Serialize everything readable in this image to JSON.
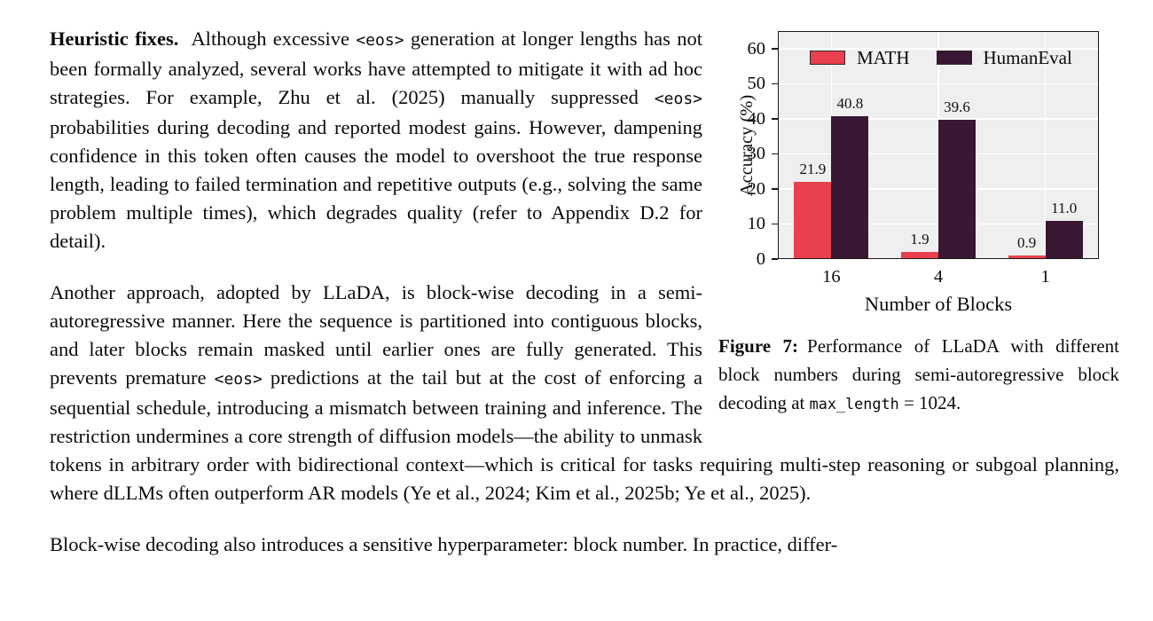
{
  "page": {
    "background": "#ffffff",
    "text_color": "#0b0b0b"
  },
  "article": {
    "paragraph1": {
      "lead": "Heuristic fixes.",
      "seg1": "Although excessive ",
      "eos1": "<eos>",
      "seg2": " generation at longer lengths has not been formally analyzed, several works have attempted to mitigate it with ad hoc strategies. For example, Zhu et al. (2025) manually suppressed ",
      "eos2": "<eos>",
      "seg3": " probabilities during decoding and reported modest gains. However, dampening confidence in this token often causes the model to overshoot the true response length, leading to failed termination and repetitive outputs (e.g., solving the same problem multiple times), which degrades quality (refer to Appendix D.2 for detail)."
    },
    "paragraph2": {
      "seg1": "Another approach, adopted by LLaDA, is block-wise decoding in a semi-autoregressive manner. Here the sequence is partitioned into contiguous blocks, and later blocks remain masked until earlier ones are fully generated. This prevents premature ",
      "eos1": "<eos>",
      "seg2": " predictions at the tail but at the cost of enforcing a sequential schedule, introducing a mismatch between training and inference. The restriction undermines a core strength of diffusion models—the ability to unmask tokens in arbitrary order with bidirectional context—which is critical for tasks requiring multi-step reasoning or subgoal planning, where dLLMs often outperform AR models (Ye et al., 2024; Kim et al., 2025b; Ye et al., 2025)."
    },
    "paragraph3": "Block-wise decoding also introduces a sensitive hyperparameter: block number. In practice, differ-"
  },
  "figure": {
    "caption": {
      "label": "Figure 7:",
      "seg1": "Performance of LLaDA with different block numbers during semi-autoregressive block decoding at ",
      "code": "max_length",
      "seg2": " = 1024."
    }
  },
  "chart_data": {
    "type": "bar",
    "categories": [
      "16",
      "4",
      "1"
    ],
    "series": [
      {
        "name": "MATH",
        "color": "#e8404e",
        "values": [
          21.9,
          1.9,
          0.9
        ]
      },
      {
        "name": "HumanEval",
        "color": "#3a1733",
        "values": [
          40.8,
          39.6,
          11.0
        ]
      }
    ],
    "title": "",
    "xlabel": "Number of Blocks",
    "ylabel": "Accuracy (%)",
    "ylim": [
      0,
      65
    ],
    "yticks": [
      0,
      10,
      20,
      30,
      40,
      50,
      60
    ],
    "grid": true,
    "grid_color": "#ffffff",
    "plot_background": "#f0eff0",
    "axis_color": "#1a1a1a",
    "legend_position": "top-inside",
    "bar_value_labels": true
  }
}
